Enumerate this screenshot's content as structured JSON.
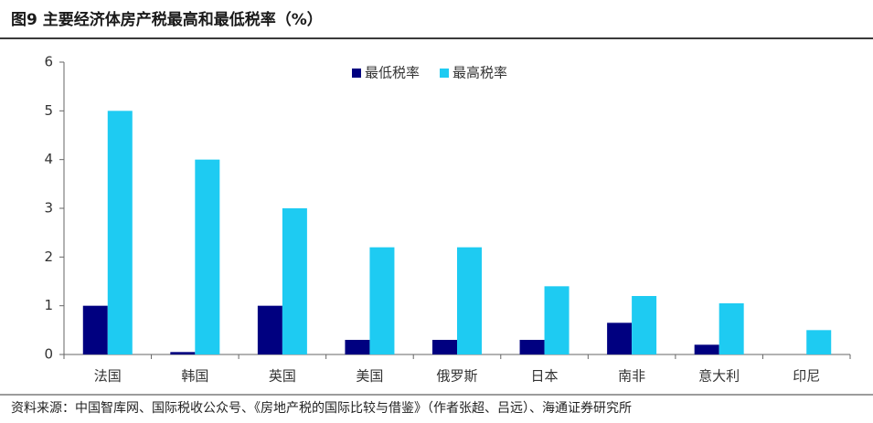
{
  "chart_data": {
    "type": "bar",
    "title": "图9  主要经济体房产税最高和最低税率（%）",
    "source": "资料来源：中国智库网、国际税收公众号、《房地产税的国际比较与借鉴》（作者张超、吕远）、海通证券研究所",
    "categories": [
      "法国",
      "韩国",
      "英国",
      "美国",
      "俄罗斯",
      "日本",
      "南非",
      "意大利",
      "印尼"
    ],
    "series": [
      {
        "name": "最低税率",
        "color": "#000080",
        "values": [
          1,
          0.05,
          1,
          0.3,
          0.3,
          0.3,
          0.65,
          0.2,
          0
        ]
      },
      {
        "name": "最高税率",
        "color": "#1ecbf2",
        "values": [
          5,
          4,
          3,
          2.2,
          2.2,
          1.4,
          1.2,
          1.05,
          0.5
        ]
      }
    ],
    "ylim": [
      0,
      6
    ],
    "yticks": [
      0,
      1,
      2,
      3,
      4,
      5,
      6
    ],
    "grid": false,
    "legend": "top"
  }
}
